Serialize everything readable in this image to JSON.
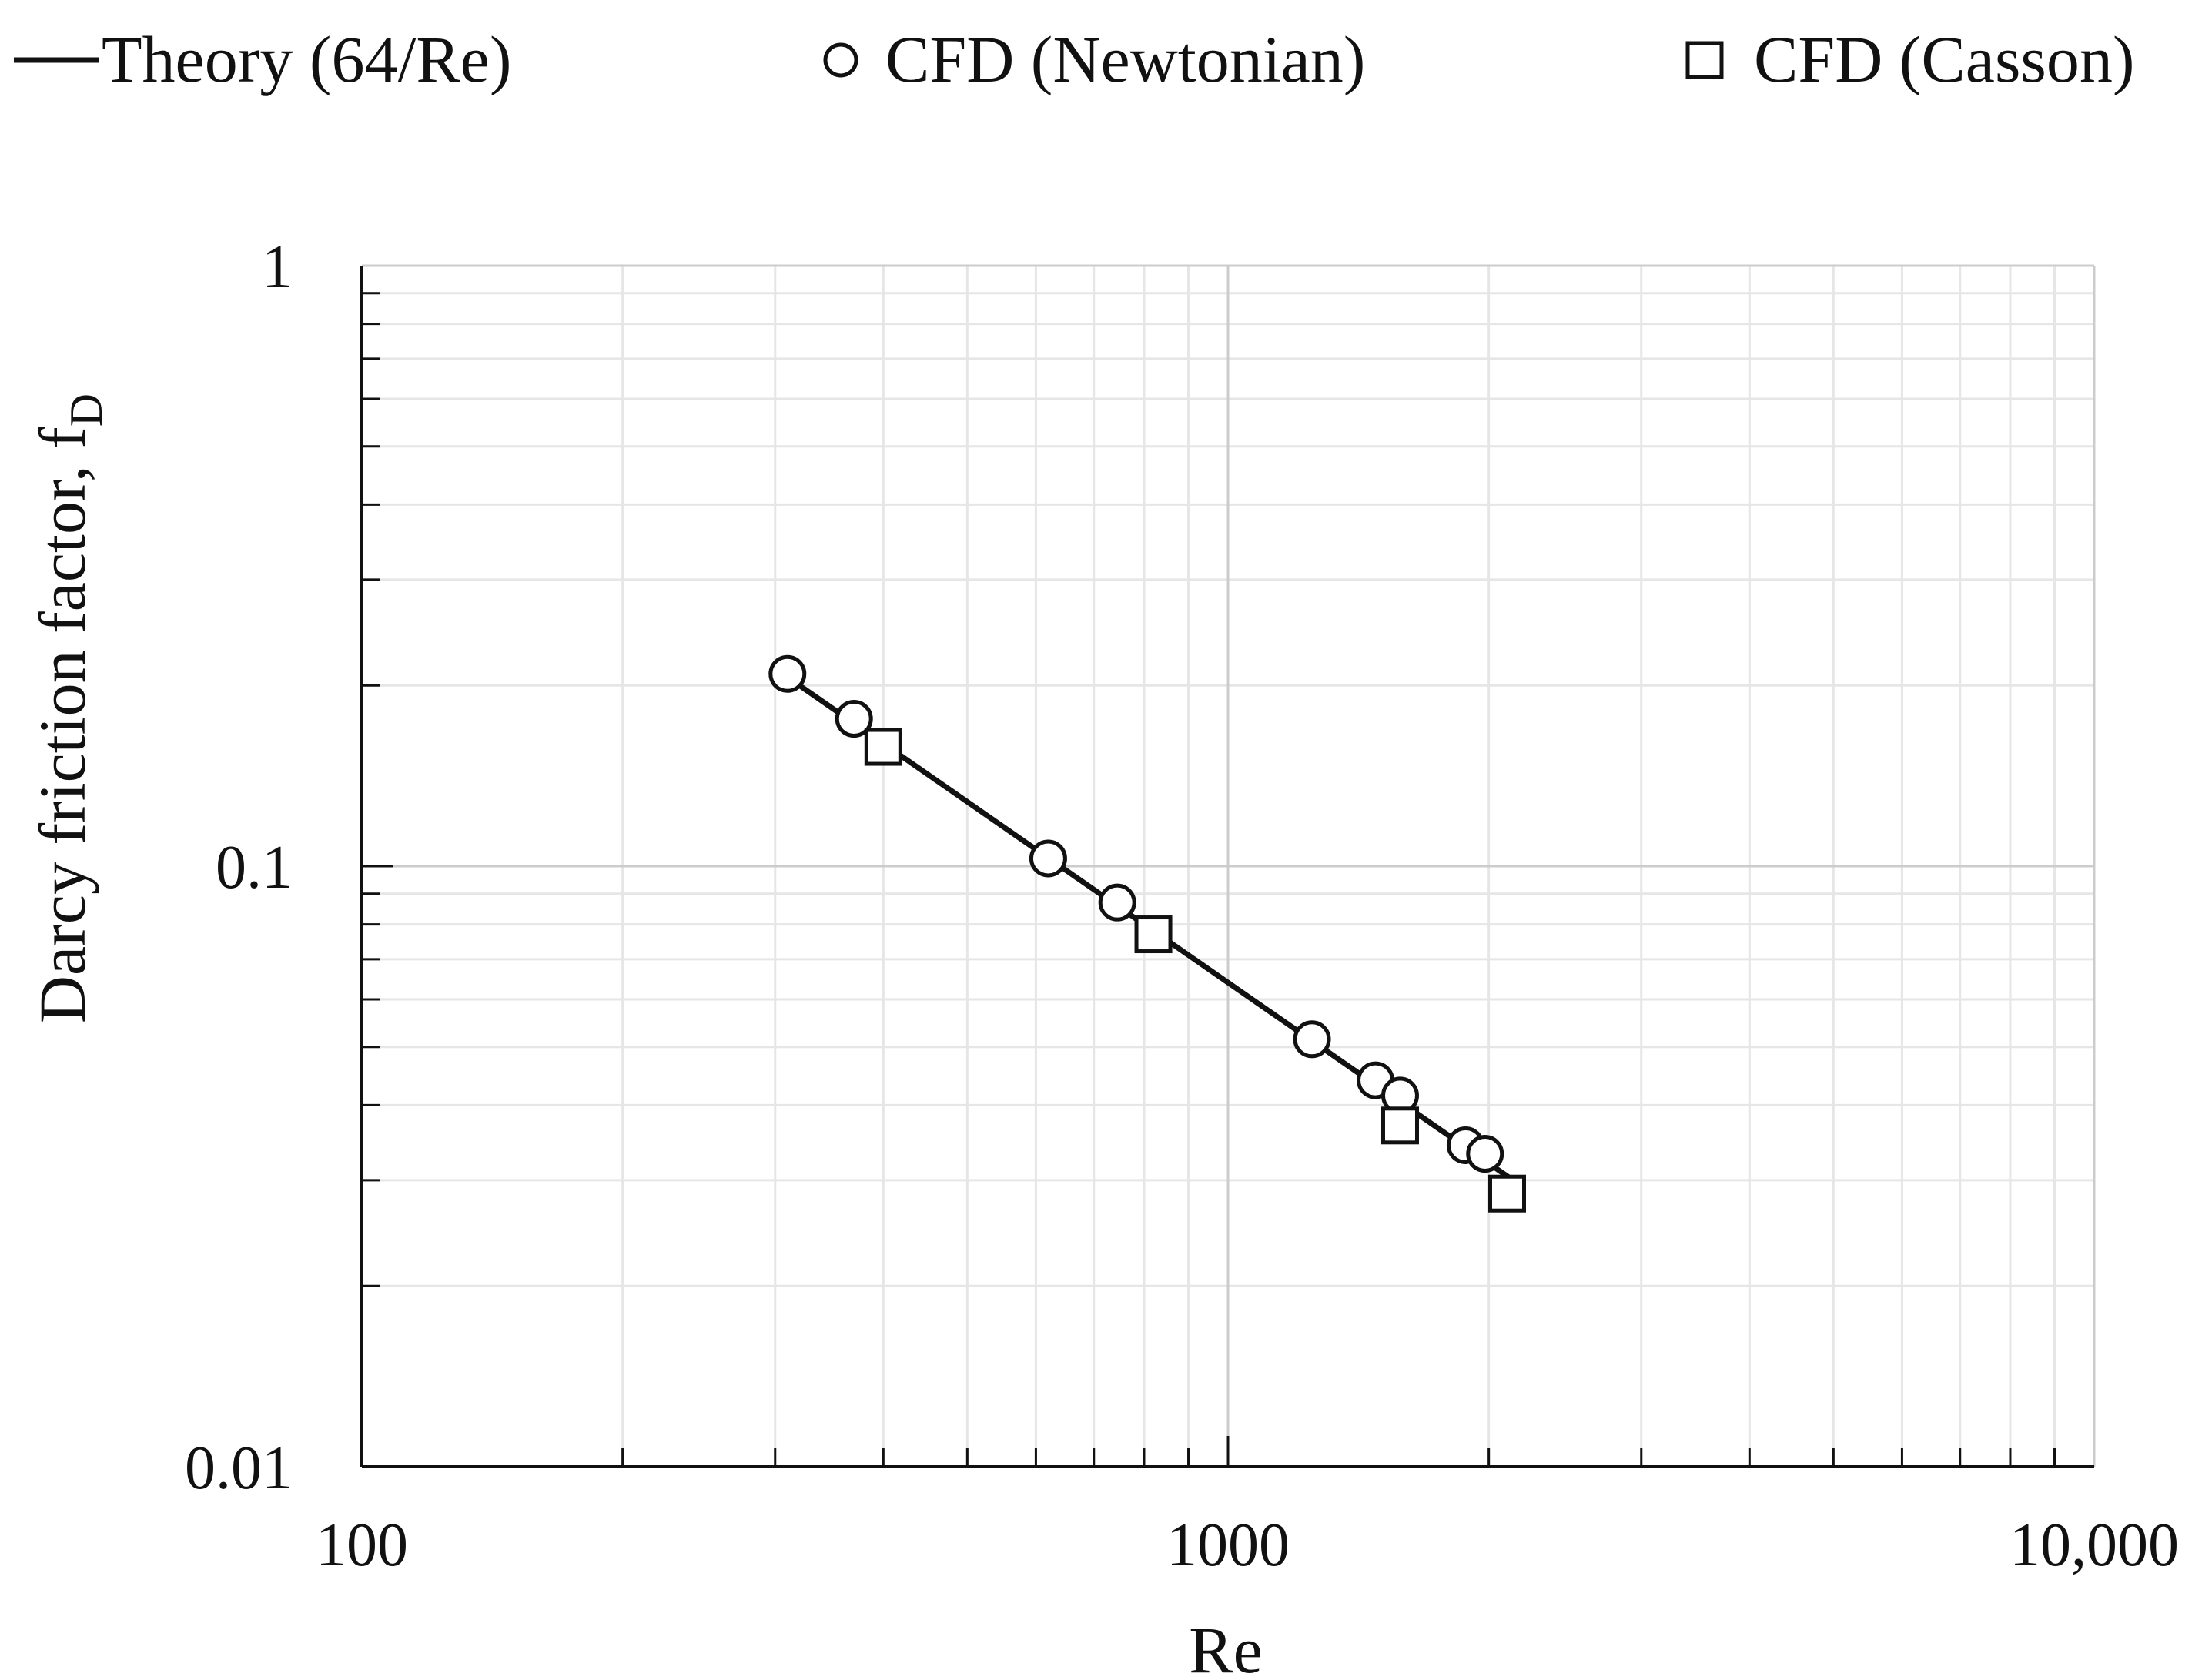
{
  "chart_data": {
    "type": "scatter",
    "title": "",
    "xlabel": "Re",
    "ylabel": "Darcy friction factor, f",
    "ylabel_subscript": "D",
    "xscale": "log",
    "yscale": "log",
    "xlim": [
      100,
      10000
    ],
    "ylim": [
      0.01,
      1
    ],
    "grid": true,
    "legend_position": "top",
    "x_ticks": [
      {
        "value": 100,
        "label": "100"
      },
      {
        "value": 1000,
        "label": "1000"
      },
      {
        "value": 10000,
        "label": "10,000"
      }
    ],
    "y_ticks": [
      {
        "value": 0.01,
        "label": "0.01"
      },
      {
        "value": 0.1,
        "label": "0.1"
      },
      {
        "value": 1,
        "label": "1"
      }
    ],
    "series": [
      {
        "name": "Theory (64/Re)",
        "kind": "line",
        "formula": "64/Re",
        "x_range": [
          305,
          2200
        ]
      },
      {
        "name": "CFD (Newtonian)",
        "kind": "scatter",
        "marker": "circle",
        "x": [
          310,
          370,
          620,
          745,
          1250,
          1480,
          1580,
          1880,
          1980
        ],
        "y": [
          0.209,
          0.176,
          0.103,
          0.087,
          0.0515,
          0.044,
          0.0415,
          0.0343,
          0.0332
        ]
      },
      {
        "name": "CFD (Casson)",
        "kind": "scatter",
        "marker": "square",
        "x": [
          400,
          820,
          1580,
          2100
        ],
        "y": [
          0.158,
          0.077,
          0.037,
          0.0285
        ]
      }
    ]
  },
  "colors": {
    "axis": "#111111",
    "major_grid": "#cccccc",
    "minor_grid": "#e6e6e6",
    "marker_fill": "#ffffff",
    "line": "#111111"
  }
}
